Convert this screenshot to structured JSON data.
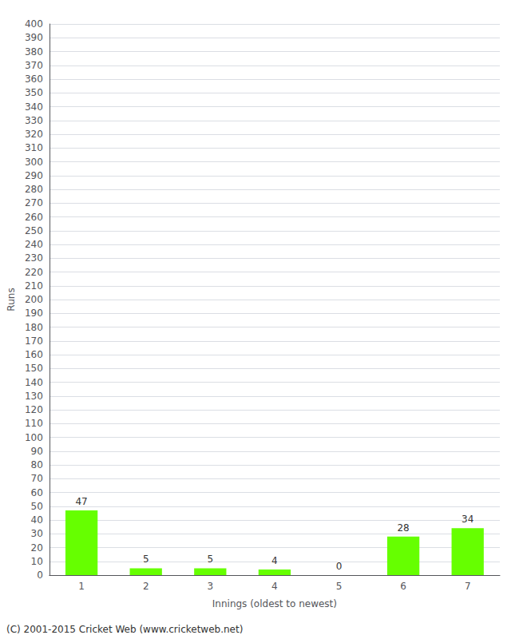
{
  "chart_data": {
    "type": "bar",
    "categories": [
      "1",
      "2",
      "3",
      "4",
      "5",
      "6",
      "7"
    ],
    "values": [
      47,
      5,
      5,
      4,
      0,
      28,
      34
    ],
    "color": "#66ff00",
    "xlabel": "Innings (oldest to newest)",
    "ylabel": "Runs",
    "ylim": [
      0,
      400
    ],
    "yticks": [
      0,
      10,
      20,
      30,
      40,
      50,
      60,
      70,
      80,
      90,
      100,
      110,
      120,
      130,
      140,
      150,
      160,
      170,
      180,
      190,
      200,
      210,
      220,
      230,
      240,
      250,
      260,
      270,
      280,
      290,
      300,
      310,
      320,
      330,
      340,
      350,
      360,
      370,
      380,
      390,
      400
    ],
    "grid": true,
    "data_labels": true,
    "annotations": [
      "(C) 2001-2015 Cricket Web (www.cricketweb.net)"
    ]
  }
}
